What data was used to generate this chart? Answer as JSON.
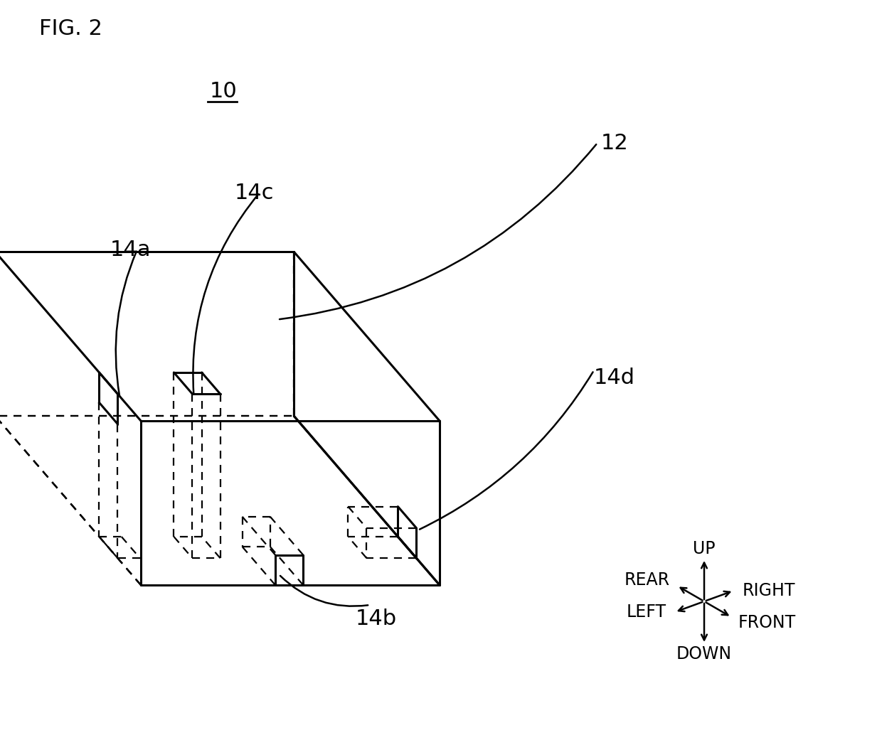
{
  "title": "FIG. 2",
  "bg_color": "#ffffff",
  "line_color": "#000000",
  "label_10": "10",
  "label_12": "12",
  "label_14a": "14a",
  "label_14b": "14b",
  "label_14c": "14c",
  "label_14d": "14d"
}
